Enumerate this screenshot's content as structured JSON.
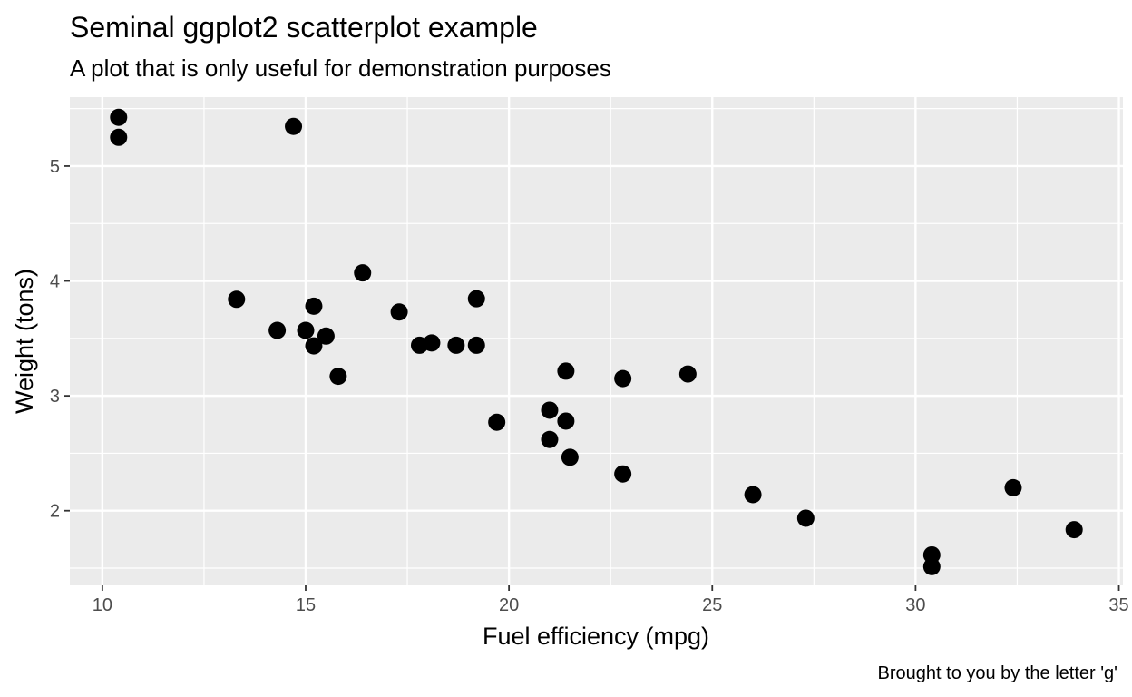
{
  "chart_data": {
    "type": "scatter",
    "title": "Seminal ggplot2 scatterplot example",
    "subtitle": "A plot that is only useful for demonstration purposes",
    "caption": "Brought to you by the letter 'g'",
    "xlabel": "Fuel efficiency (mpg)",
    "ylabel": "Weight (tons)",
    "xlim": [
      9.2,
      35.1
    ],
    "ylim": [
      1.35,
      5.6
    ],
    "x_ticks": [
      10,
      15,
      20,
      25,
      30,
      35
    ],
    "y_ticks": [
      2,
      3,
      4,
      5
    ],
    "x_tick_labels": [
      "10",
      "15",
      "20",
      "25",
      "30",
      "35"
    ],
    "y_tick_labels": [
      "2",
      "3",
      "4",
      "5"
    ],
    "grid": true,
    "legend": "none",
    "colors": {
      "panel": "#ebebeb",
      "grid": "#ffffff",
      "point": "#000000",
      "tick_text": "#4d4d4d"
    },
    "points": [
      {
        "x": 21.0,
        "y": 2.62
      },
      {
        "x": 21.0,
        "y": 2.875
      },
      {
        "x": 22.8,
        "y": 2.32
      },
      {
        "x": 21.4,
        "y": 3.215
      },
      {
        "x": 18.7,
        "y": 3.44
      },
      {
        "x": 18.1,
        "y": 3.46
      },
      {
        "x": 14.3,
        "y": 3.57
      },
      {
        "x": 24.4,
        "y": 3.19
      },
      {
        "x": 22.8,
        "y": 3.15
      },
      {
        "x": 19.2,
        "y": 3.44
      },
      {
        "x": 17.8,
        "y": 3.44
      },
      {
        "x": 16.4,
        "y": 4.07
      },
      {
        "x": 17.3,
        "y": 3.73
      },
      {
        "x": 15.2,
        "y": 3.78
      },
      {
        "x": 10.4,
        "y": 5.25
      },
      {
        "x": 10.4,
        "y": 5.424
      },
      {
        "x": 14.7,
        "y": 5.345
      },
      {
        "x": 32.4,
        "y": 2.2
      },
      {
        "x": 30.4,
        "y": 1.615
      },
      {
        "x": 33.9,
        "y": 1.835
      },
      {
        "x": 21.5,
        "y": 2.465
      },
      {
        "x": 15.5,
        "y": 3.52
      },
      {
        "x": 15.2,
        "y": 3.435
      },
      {
        "x": 13.3,
        "y": 3.84
      },
      {
        "x": 19.2,
        "y": 3.845
      },
      {
        "x": 27.3,
        "y": 1.935
      },
      {
        "x": 26.0,
        "y": 2.14
      },
      {
        "x": 30.4,
        "y": 1.513
      },
      {
        "x": 15.8,
        "y": 3.17
      },
      {
        "x": 19.7,
        "y": 2.77
      },
      {
        "x": 15.0,
        "y": 3.57
      },
      {
        "x": 21.4,
        "y": 2.78
      }
    ]
  }
}
